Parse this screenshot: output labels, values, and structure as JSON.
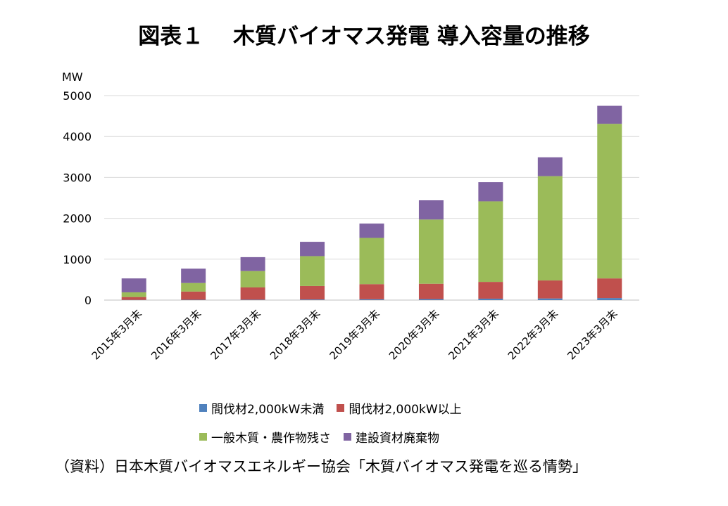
{
  "title": "図表１　 木質バイオマス発電 導入容量の推移",
  "source": "（資料）日本木質バイオマスエネルギー協会「木質バイオマス発電を巡る情勢」",
  "chart_data": {
    "type": "bar",
    "stacked": true,
    "unit": "MW",
    "ylim": [
      0,
      5000
    ],
    "yticks": [
      0,
      1000,
      2000,
      3000,
      4000,
      5000
    ],
    "grid": true,
    "legend_position": "bottom",
    "categories": [
      "2015年3月末",
      "2016年3月末",
      "2017年3月末",
      "2018年3月末",
      "2019年3月末",
      "2020年3月末",
      "2021年3月末",
      "2022年3月末",
      "2023年3月末"
    ],
    "series": [
      {
        "name": "間伐材2,000kW未満",
        "color": "#4f81bd",
        "values": [
          5,
          8,
          10,
          15,
          20,
          25,
          35,
          40,
          50
        ]
      },
      {
        "name": "間伐材2,000kW以上",
        "color": "#c0504d",
        "values": [
          70,
          200,
          300,
          330,
          370,
          375,
          410,
          440,
          480
        ]
      },
      {
        "name": "一般木質・農作物残さ",
        "color": "#9bbb59",
        "values": [
          115,
          210,
          400,
          730,
          1130,
          1570,
          1970,
          2550,
          3780
        ]
      },
      {
        "name": "建設資材廃棄物",
        "color": "#8064a2",
        "values": [
          340,
          350,
          340,
          350,
          350,
          470,
          470,
          460,
          440
        ]
      }
    ]
  }
}
